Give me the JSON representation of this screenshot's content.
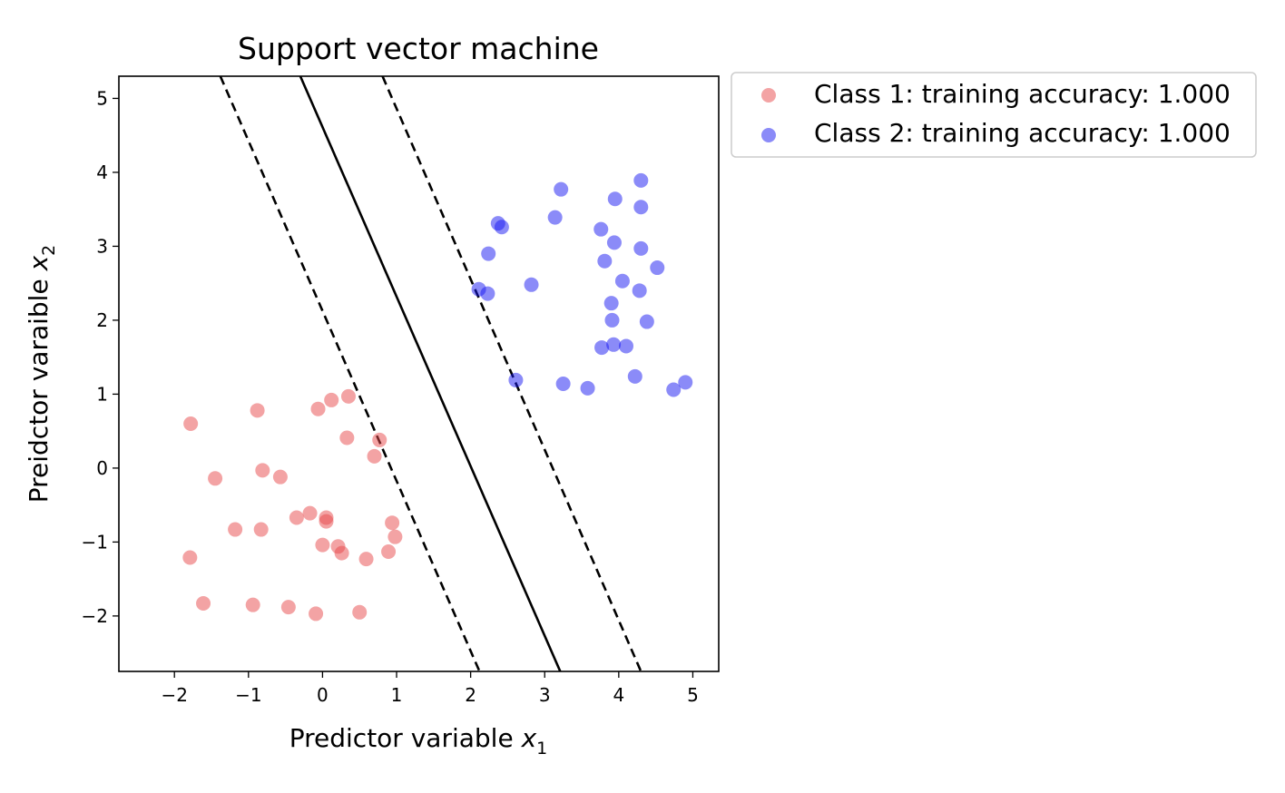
{
  "chart_data": {
    "type": "scatter",
    "title": "Support vector machine",
    "xlabel": "Predictor variable",
    "xlabel_var": "x",
    "xlabel_sub": "1",
    "ylabel": "Preidctor varaible",
    "ylabel_var": "x",
    "ylabel_sub": "2",
    "xlim": [
      -2.75,
      5.35
    ],
    "ylim": [
      -2.75,
      5.3
    ],
    "xticks": [
      -2,
      -1,
      0,
      1,
      2,
      3,
      4,
      5
    ],
    "yticks": [
      -2,
      -1,
      0,
      1,
      2,
      3,
      4,
      5
    ],
    "xtick_labels": [
      "−2",
      "−1",
      "0",
      "1",
      "2",
      "3",
      "4",
      "5"
    ],
    "ytick_labels": [
      "−2",
      "−1",
      "0",
      "1",
      "2",
      "3",
      "4",
      "5"
    ],
    "grid": false,
    "legend_placement": "outside top-right",
    "series": [
      {
        "name": "Class 1: training accuracy: 1.000",
        "color": "#e8474a",
        "alpha": 0.5,
        "x": [
          -1.78,
          -0.88,
          -0.06,
          0.12,
          0.35,
          -1.45,
          -0.81,
          -0.57,
          0.33,
          0.77,
          0.7,
          -1.18,
          -0.83,
          -0.35,
          -0.17,
          0.05,
          0.05,
          0.94,
          0.98,
          -1.79,
          0.0,
          0.21,
          0.26,
          0.59,
          0.89,
          -1.61,
          -0.94,
          -0.46,
          -0.09,
          0.5
        ],
        "y": [
          0.6,
          0.78,
          0.8,
          0.92,
          0.97,
          -0.14,
          -0.03,
          -0.12,
          0.41,
          0.38,
          0.16,
          -0.83,
          -0.83,
          -0.67,
          -0.61,
          -0.67,
          -0.72,
          -0.74,
          -0.93,
          -1.21,
          -1.04,
          -1.06,
          -1.15,
          -1.23,
          -1.13,
          -1.83,
          -1.85,
          -1.88,
          -1.97,
          -1.95
        ]
      },
      {
        "name": "Class 2: training accuracy: 1.000",
        "color": "#1717f2",
        "alpha": 0.5,
        "x": [
          3.22,
          4.3,
          3.95,
          4.3,
          2.37,
          2.42,
          3.14,
          3.76,
          3.94,
          4.3,
          2.24,
          3.81,
          4.52,
          4.05,
          2.82,
          2.11,
          2.23,
          4.28,
          3.9,
          4.38,
          3.91,
          3.77,
          3.93,
          4.1,
          2.61,
          4.22,
          3.25,
          3.58,
          4.74,
          4.9
        ],
        "y": [
          3.77,
          3.89,
          3.64,
          3.53,
          3.31,
          3.26,
          3.39,
          3.23,
          3.05,
          2.97,
          2.9,
          2.8,
          2.71,
          2.53,
          2.48,
          2.42,
          2.36,
          2.4,
          2.23,
          1.98,
          2.0,
          1.63,
          1.67,
          1.65,
          1.19,
          1.24,
          1.14,
          1.08,
          1.06,
          1.16
        ]
      }
    ],
    "lines": [
      {
        "role": "decision-boundary",
        "style": "solid",
        "x": [
          -0.3,
          3.21
        ],
        "y": [
          5.3,
          -2.75
        ]
      },
      {
        "role": "margin-lower",
        "style": "dashed",
        "x": [
          -1.38,
          2.12
        ],
        "y": [
          5.3,
          -2.75
        ]
      },
      {
        "role": "margin-upper",
        "style": "dashed",
        "x": [
          0.81,
          4.3
        ],
        "y": [
          5.3,
          -2.75
        ]
      }
    ]
  }
}
